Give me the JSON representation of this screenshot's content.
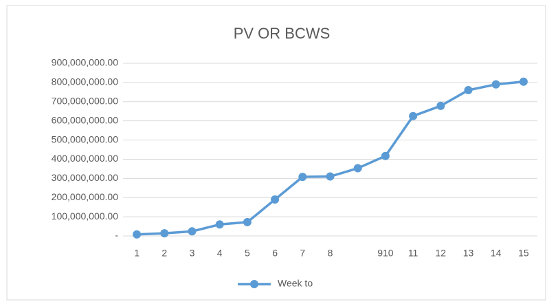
{
  "chart_data": {
    "type": "line",
    "title": "PV OR BCWS",
    "categories": [
      "1",
      "2",
      "3",
      "4",
      "5",
      "6",
      "7",
      "8",
      null,
      "910",
      "11",
      "12",
      "13",
      "14",
      "15"
    ],
    "series": [
      {
        "name": "Week to",
        "color": "#5b9bd5",
        "values": [
          8000000,
          14000000,
          24000000,
          60000000,
          72000000,
          190000000,
          308000000,
          310000000,
          353000000,
          417000000,
          625000000,
          678000000,
          760000000,
          790000000,
          804000000
        ]
      }
    ],
    "ylim": [
      0,
      900000000
    ],
    "yticks": [
      {
        "value": 0,
        "label": "-"
      },
      {
        "value": 100000000,
        "label": "100,000,000.00"
      },
      {
        "value": 200000000,
        "label": "200,000,000.00"
      },
      {
        "value": 300000000,
        "label": "300,000,000.00"
      },
      {
        "value": 400000000,
        "label": "400,000,000.00"
      },
      {
        "value": 500000000,
        "label": "500,000,000.00"
      },
      {
        "value": 600000000,
        "label": "600,000,000.00"
      },
      {
        "value": 700000000,
        "label": "700,000,000.00"
      },
      {
        "value": 800000000,
        "label": "800,000,000.00"
      },
      {
        "value": 900000000,
        "label": "900,000,000.00"
      }
    ],
    "grid": true,
    "legend": "bottom"
  }
}
